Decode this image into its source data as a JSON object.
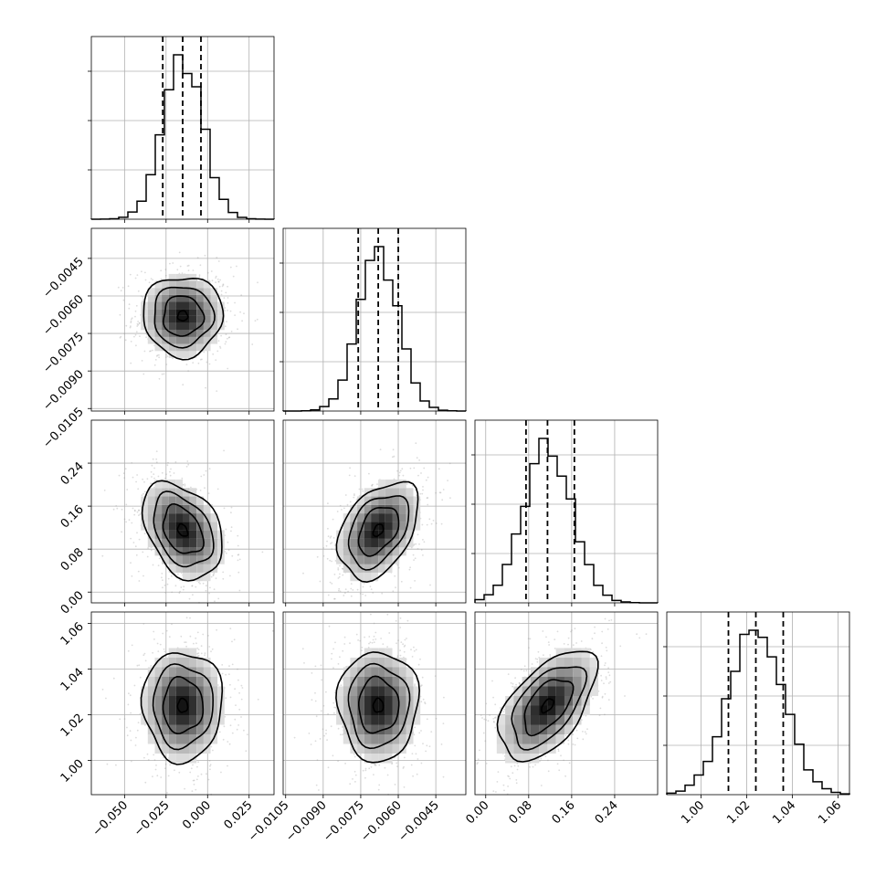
{
  "chart_data": {
    "type": "corner",
    "parameters": [
      {
        "range": [
          -0.07,
          0.04
        ],
        "median": -0.015,
        "q16": -0.027,
        "q84": -0.004,
        "sd": 0.012,
        "ticks": [
          -0.05,
          -0.025,
          0.0,
          0.025
        ],
        "tick_labels": [
          "−0.050",
          "−0.025",
          "0.000",
          "0.025"
        ]
      },
      {
        "range": [
          -0.0106,
          -0.0033
        ],
        "median": -0.0068,
        "q16": -0.0076,
        "q84": -0.006,
        "sd": 0.0008,
        "ticks": [
          -0.0105,
          -0.009,
          -0.0075,
          -0.006,
          -0.0045
        ],
        "tick_labels": [
          "−0.0105",
          "−0.0090",
          "−0.0075",
          "−0.0060",
          "−0.0045"
        ]
      },
      {
        "range": [
          -0.02,
          0.32
        ],
        "median": 0.115,
        "q16": 0.075,
        "q84": 0.165,
        "sd": 0.045,
        "ticks": [
          0.0,
          0.08,
          0.16,
          0.24
        ],
        "tick_labels": [
          "0.00",
          "0.08",
          "0.16",
          "0.24"
        ]
      },
      {
        "range": [
          0.985,
          1.065
        ],
        "median": 1.024,
        "q16": 1.012,
        "q84": 1.036,
        "sd": 0.012,
        "ticks": [
          1.0,
          1.02,
          1.04,
          1.06
        ],
        "tick_labels": [
          "1.00",
          "1.02",
          "1.04",
          "1.06"
        ]
      }
    ],
    "correlations": [
      [
        1,
        0.0,
        -0.35,
        0.0
      ],
      [
        0.0,
        1,
        0.4,
        0.0
      ],
      [
        -0.35,
        0.4,
        1,
        0.55
      ],
      [
        0.0,
        0.0,
        0.55,
        1
      ]
    ],
    "histogram_bins": 20,
    "scatter_points_per_panel": 700,
    "grid": true,
    "quantiles": [
      0.16,
      0.5,
      0.84
    ],
    "colors": {
      "hist": "#000000",
      "points": "#9a9a9a",
      "density": "#000000"
    }
  }
}
